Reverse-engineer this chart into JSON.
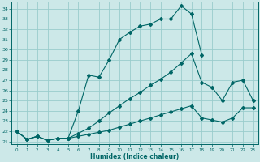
{
  "title": "",
  "xlabel": "Humidex (Indice chaleur)",
  "bg_color": "#cce8e8",
  "grid_color": "#99cccc",
  "line_color": "#006666",
  "xlim": [
    -0.5,
    23.5
  ],
  "ylim": [
    20.7,
    34.7
  ],
  "yticks": [
    21,
    22,
    23,
    24,
    25,
    26,
    27,
    28,
    29,
    30,
    31,
    32,
    33,
    34
  ],
  "xticks": [
    0,
    1,
    2,
    3,
    4,
    5,
    6,
    7,
    8,
    9,
    10,
    11,
    12,
    13,
    14,
    15,
    16,
    17,
    18,
    19,
    20,
    21,
    22,
    23
  ],
  "line1_x": [
    0,
    1,
    2,
    3,
    4,
    5,
    6,
    7,
    8,
    9,
    10,
    11,
    12,
    13,
    14,
    15,
    16,
    17,
    18
  ],
  "line1_y": [
    22.0,
    21.2,
    21.5,
    21.1,
    21.3,
    21.3,
    24.0,
    27.5,
    27.3,
    29.0,
    31.0,
    31.7,
    32.3,
    32.5,
    33.0,
    33.0,
    34.3,
    33.5,
    29.5
  ],
  "line2_x": [
    0,
    1,
    2,
    3,
    4,
    5,
    6,
    7,
    8,
    9,
    10,
    11,
    12,
    13,
    14,
    15,
    16,
    17,
    18,
    19,
    20,
    21,
    22,
    23
  ],
  "line2_y": [
    22.0,
    21.2,
    21.5,
    21.1,
    21.3,
    21.3,
    21.8,
    22.3,
    23.0,
    23.8,
    24.5,
    25.2,
    25.8,
    26.5,
    27.1,
    27.8,
    28.7,
    29.6,
    26.8,
    26.3,
    25.0,
    26.8,
    27.0,
    25.0
  ],
  "line3_x": [
    0,
    1,
    2,
    3,
    4,
    5,
    6,
    7,
    8,
    9,
    10,
    11,
    12,
    13,
    14,
    15,
    16,
    17,
    18,
    19,
    20,
    21,
    22,
    23
  ],
  "line3_y": [
    22.0,
    21.2,
    21.5,
    21.1,
    21.3,
    21.3,
    21.5,
    21.7,
    21.9,
    22.1,
    22.4,
    22.7,
    23.0,
    23.3,
    23.6,
    23.9,
    24.2,
    24.5,
    23.3,
    23.1,
    22.9,
    23.3,
    24.3,
    24.3
  ]
}
